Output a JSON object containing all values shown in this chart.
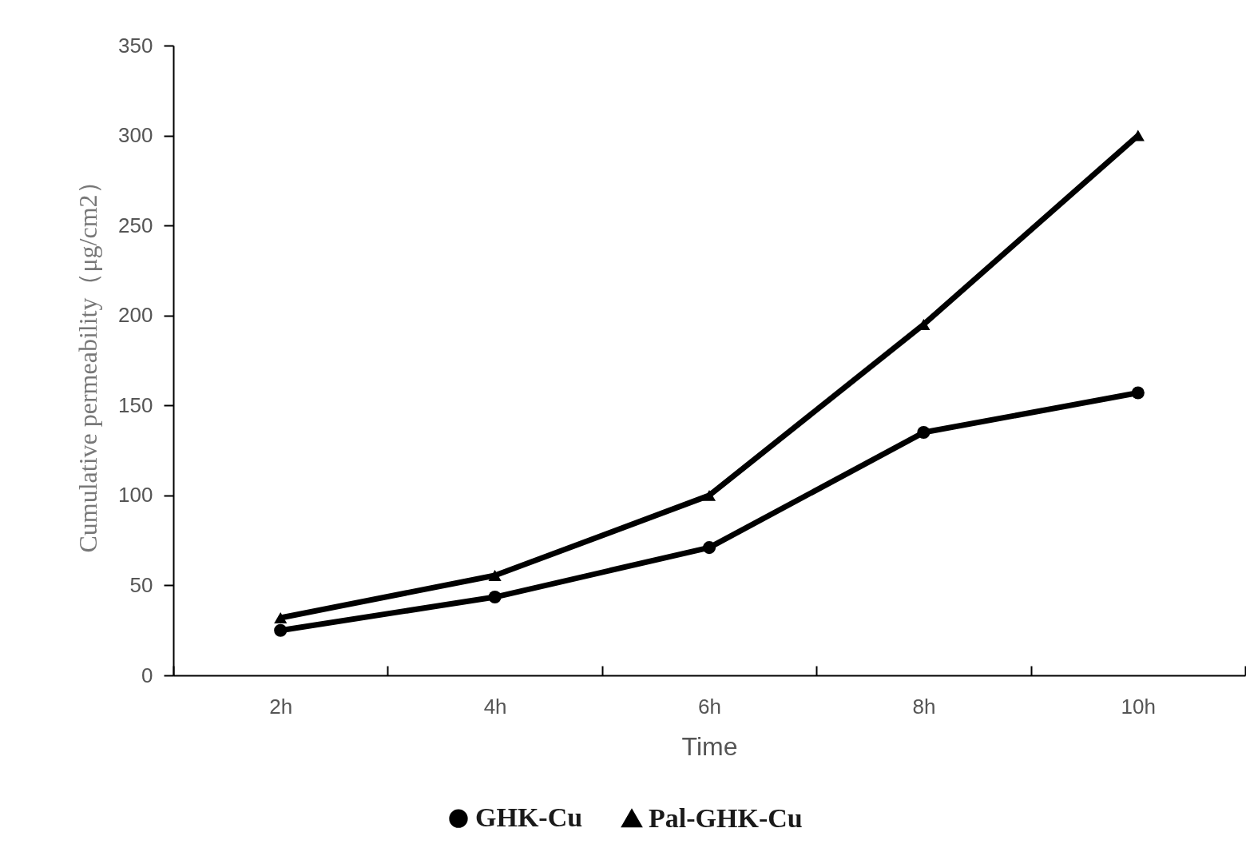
{
  "chart_data": {
    "type": "line",
    "xlabel": "Time",
    "ylabel": "Cumulative permeability（μg/cm2）",
    "categories": [
      "2h",
      "4h",
      "6h",
      "8h",
      "10h"
    ],
    "series": [
      {
        "name": "GHK-Cu",
        "color": "#000000",
        "marker": "circle",
        "values": [
          25,
          43.5,
          71,
          135,
          157
        ]
      },
      {
        "name": "Pal-GHK-Cu",
        "color": "#000000",
        "marker": "triangle",
        "values": [
          32,
          55.5,
          100,
          195,
          300
        ]
      }
    ],
    "ylim": [
      0,
      350
    ],
    "yticks": [
      0,
      50,
      100,
      150,
      200,
      250,
      300,
      350
    ],
    "grid": false,
    "legend": "bottom",
    "line_style": "solid"
  }
}
